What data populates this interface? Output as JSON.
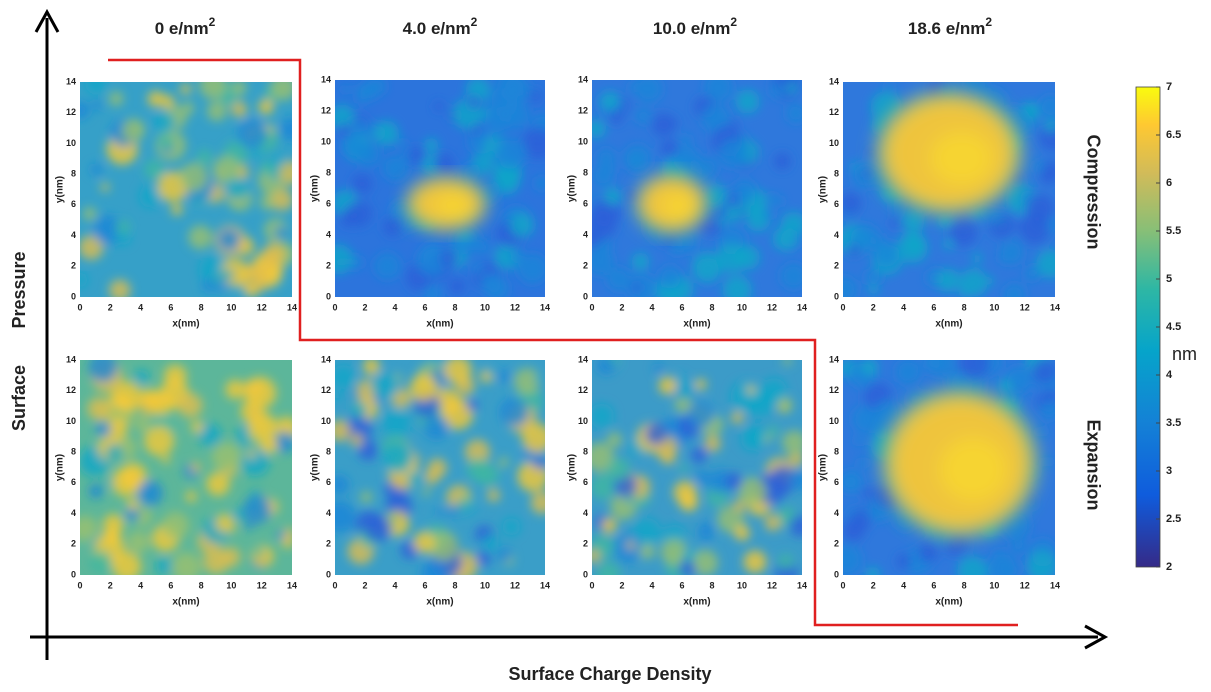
{
  "columns": [
    {
      "base": "0 e/nm",
      "sup": "2"
    },
    {
      "base": "4.0 e/nm",
      "sup": "2"
    },
    {
      "base": "10.0 e/nm",
      "sup": "2"
    },
    {
      "base": "18.6 e/nm",
      "sup": "2"
    }
  ],
  "rows": [
    "Compression",
    "Expansion"
  ],
  "x_axis_title": "Surface Charge Density",
  "y_axis_title": [
    "Surface",
    "Pressure"
  ],
  "panel": {
    "xlabel": "x(nm)",
    "ylabel": "y(nm)",
    "lim": [
      0,
      14
    ],
    "ticks": [
      0,
      2,
      4,
      6,
      8,
      10,
      12,
      14
    ]
  },
  "colorbar": {
    "label": "nm",
    "lim": [
      2,
      7
    ],
    "ticks": [
      2,
      2.5,
      3,
      3.5,
      4,
      4.5,
      5,
      5.5,
      6,
      6.5,
      7
    ]
  }
}
